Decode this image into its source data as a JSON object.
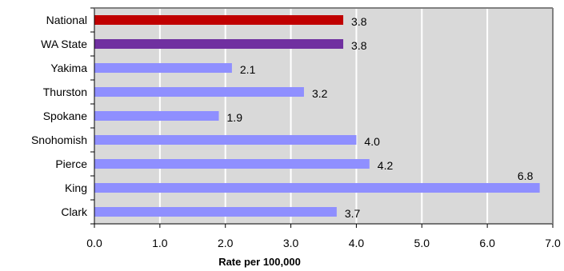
{
  "chart_data": {
    "type": "bar",
    "orientation": "horizontal",
    "categories": [
      "National",
      "WA State",
      "Yakima",
      "Thurston",
      "Spokane",
      "Snohomish",
      "Pierce",
      "King",
      "Clark"
    ],
    "values": [
      3.8,
      3.8,
      2.1,
      3.2,
      1.9,
      4.0,
      4.2,
      6.8,
      3.7
    ],
    "value_labels": [
      "3.8",
      "3.8",
      "2.1",
      "3.2",
      "1.9",
      "4.0",
      "4.2",
      "6.8",
      "3.7"
    ],
    "bar_colors": [
      "#c00000",
      "#7030a0",
      "#8f8fff",
      "#8f8fff",
      "#8f8fff",
      "#8f8fff",
      "#8f8fff",
      "#8f8fff",
      "#8f8fff"
    ],
    "xlim": [
      0,
      7
    ],
    "x_ticks": [
      "0.0",
      "1.0",
      "2.0",
      "3.0",
      "4.0",
      "5.0",
      "6.0",
      "7.0"
    ],
    "xlabel": "Rate per 100,000",
    "ylabel": "",
    "title": "",
    "grid": true,
    "plot_background": "#d9d9d9"
  }
}
